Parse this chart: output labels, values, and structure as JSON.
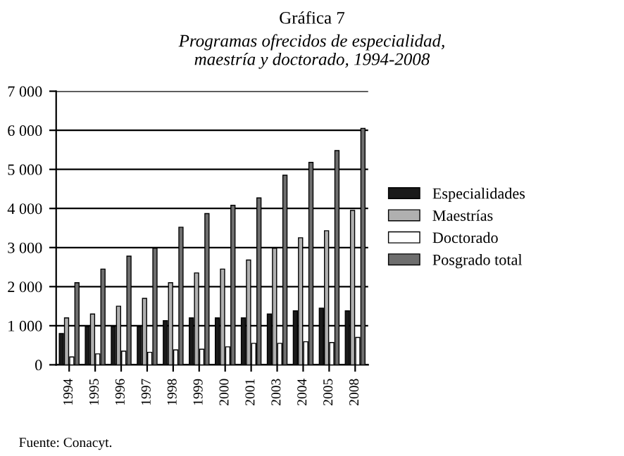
{
  "chart_data": {
    "type": "bar",
    "title": "Gráfica 7",
    "subtitle": "Programas ofrecidos de especialidad,\nmaestría y doctorado, 1994-2008",
    "categories": [
      "1994",
      "1995",
      "1996",
      "1997",
      "1998",
      "1999",
      "2000",
      "2001",
      "2003",
      "2004",
      "2005",
      "2008"
    ],
    "series": [
      {
        "name": "Especialidades",
        "color": "#1a1a1a",
        "values": [
          800,
          980,
          980,
          980,
          1130,
          1200,
          1200,
          1200,
          1300,
          1380,
          1450,
          1380
        ]
      },
      {
        "name": "Maestrías",
        "color": "#b0b0b0",
        "values": [
          1200,
          1300,
          1500,
          1700,
          2100,
          2350,
          2450,
          2680,
          2980,
          3250,
          3430,
          3950
        ]
      },
      {
        "name": "Doctorado",
        "color": "#ffffff",
        "values": [
          200,
          280,
          350,
          320,
          380,
          400,
          460,
          550,
          550,
          590,
          570,
          700
        ]
      },
      {
        "name": "Posgrado total",
        "color": "#6e6e6e",
        "values": [
          2100,
          2450,
          2780,
          2980,
          3520,
          3870,
          4080,
          4270,
          4850,
          5180,
          5480,
          6050
        ]
      }
    ],
    "ylim": [
      0,
      7000
    ],
    "yticks": [
      {
        "value": 0,
        "label": "0"
      },
      {
        "value": 1000,
        "label": "1 000"
      },
      {
        "value": 2000,
        "label": "2 000"
      },
      {
        "value": 3000,
        "label": "3 000"
      },
      {
        "value": 4000,
        "label": "4 000"
      },
      {
        "value": 5000,
        "label": "5 000"
      },
      {
        "value": 6000,
        "label": "6 000"
      },
      {
        "value": 7000,
        "label": "7 000"
      }
    ],
    "grid": "y",
    "legend": "right",
    "annotations": [
      "Fuente: Conacyt."
    ]
  }
}
